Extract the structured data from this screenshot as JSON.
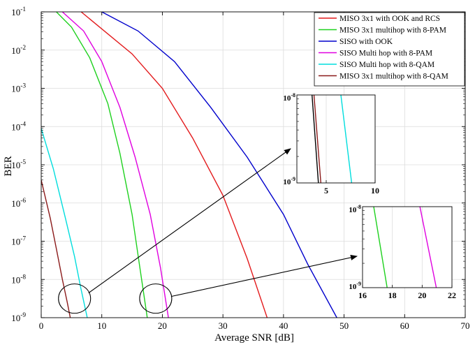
{
  "chart_data": {
    "type": "line",
    "xlabel": "Average SNR [dB]",
    "ylabel": "BER",
    "xlim": [
      0,
      70
    ],
    "ylim_log10": [
      -9,
      -1
    ],
    "y_scale": "log",
    "grid": true,
    "legend_position": "top-right",
    "x_ticks": [
      "0",
      "10",
      "20",
      "30",
      "40",
      "50",
      "60",
      "70"
    ],
    "y_ticks": [
      {
        "base": "10",
        "exp": "-1"
      },
      {
        "base": "10",
        "exp": "-2"
      },
      {
        "base": "10",
        "exp": "-3"
      },
      {
        "base": "10",
        "exp": "-4"
      },
      {
        "base": "10",
        "exp": "-5"
      },
      {
        "base": "10",
        "exp": "-6"
      },
      {
        "base": "10",
        "exp": "-7"
      },
      {
        "base": "10",
        "exp": "-8"
      },
      {
        "base": "10",
        "exp": "-9"
      }
    ],
    "series": [
      {
        "name": "MISO 3x1 with OOK and RCS",
        "color": "#e31a1c",
        "points": [
          [
            6.6,
            -1.0
          ],
          [
            15,
            -2.1
          ],
          [
            20,
            -3.0
          ],
          [
            25,
            -4.3
          ],
          [
            30,
            -5.8
          ],
          [
            34,
            -7.45
          ],
          [
            37.3,
            -9.0
          ]
        ]
      },
      {
        "name": "MISO 3x1 multihop with 8-PAM",
        "color": "#1ed11e",
        "points": [
          [
            2.5,
            -1.0
          ],
          [
            5,
            -1.4
          ],
          [
            8,
            -2.2
          ],
          [
            11,
            -3.4
          ],
          [
            13,
            -4.7
          ],
          [
            15,
            -6.3
          ],
          [
            16.2,
            -7.6
          ],
          [
            17.5,
            -9.0
          ]
        ]
      },
      {
        "name": "SISO with OOK",
        "color": "#0000cc",
        "points": [
          [
            10,
            -1.0
          ],
          [
            16,
            -1.5
          ],
          [
            22,
            -2.3
          ],
          [
            28,
            -3.5
          ],
          [
            34,
            -4.8
          ],
          [
            40,
            -6.3
          ],
          [
            44,
            -7.6
          ],
          [
            48.8,
            -9.0
          ]
        ]
      },
      {
        "name": "SISO Multi hop with 8-PAM",
        "color": "#e000e0",
        "points": [
          [
            3.5,
            -1.0
          ],
          [
            7,
            -1.5
          ],
          [
            10,
            -2.3
          ],
          [
            13,
            -3.5
          ],
          [
            15.5,
            -4.8
          ],
          [
            18,
            -6.3
          ],
          [
            19.7,
            -7.7
          ],
          [
            21.0,
            -9.0
          ]
        ]
      },
      {
        "name": "SISO Multi hop with 8-QAM",
        "color": "#00dddd",
        "points": [
          [
            0,
            -4.05
          ],
          [
            2,
            -5.1
          ],
          [
            4,
            -6.4
          ],
          [
            5.5,
            -7.4
          ],
          [
            6.5,
            -8.2
          ],
          [
            7.6,
            -9.0
          ]
        ]
      },
      {
        "name": "MISO 3x1 multihop with 8-QAM",
        "color": "#8b1a1a",
        "points": [
          [
            0,
            -5.4
          ],
          [
            1.5,
            -6.4
          ],
          [
            2.5,
            -7.2
          ],
          [
            3.5,
            -8.0
          ],
          [
            4.3,
            -8.6
          ],
          [
            4.8,
            -9.0
          ]
        ]
      }
    ],
    "insets": [
      {
        "xlim": [
          2,
          10
        ],
        "ylim_log10": [
          -9,
          -8
        ],
        "x_ticks": [
          "5",
          "10"
        ],
        "x_tick_values": [
          5,
          10
        ],
        "y_ticks": [
          {
            "base": "10",
            "exp": "-8"
          },
          {
            "base": "10",
            "exp": "-9"
          }
        ],
        "lines": [
          {
            "color": "#000000",
            "points": [
              [
                3.55,
                -8.0
              ],
              [
                4.2,
                -9.0
              ]
            ]
          },
          {
            "color": "#8b1a1a",
            "points": [
              [
                3.75,
                -8.0
              ],
              [
                4.45,
                -9.0
              ]
            ]
          },
          {
            "color": "#00dddd",
            "points": [
              [
                6.5,
                -8.0
              ],
              [
                7.6,
                -9.0
              ]
            ]
          }
        ]
      },
      {
        "xlim": [
          16,
          22
        ],
        "ylim_log10": [
          -9,
          -8
        ],
        "x_ticks": [
          "16",
          "18",
          "20",
          "22"
        ],
        "x_tick_values": [
          16,
          18,
          20,
          22
        ],
        "y_ticks": [
          {
            "base": "10",
            "exp": "-8"
          },
          {
            "base": "10",
            "exp": "-9"
          }
        ],
        "lines": [
          {
            "color": "#1ed11e",
            "points": [
              [
                16.75,
                -8.0
              ],
              [
                17.65,
                -9.0
              ]
            ]
          },
          {
            "color": "#e000e0",
            "points": [
              [
                19.85,
                -8.0
              ],
              [
                20.95,
                -9.0
              ]
            ]
          }
        ]
      }
    ],
    "annotations": [
      {
        "type": "ellipse",
        "cx": 5.5,
        "cy_log10": -8.5
      },
      {
        "type": "ellipse",
        "cx": 18.9,
        "cy_log10": -8.5
      }
    ]
  }
}
